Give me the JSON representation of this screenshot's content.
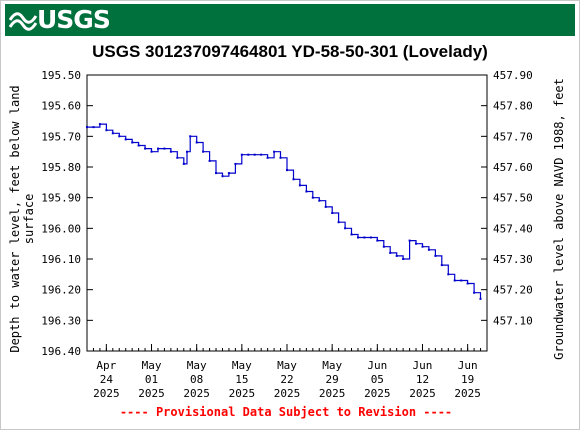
{
  "header": {
    "logo_text": "USGS",
    "banner_color": "#00703c",
    "logo_icon": "usgs-wave-icon"
  },
  "chart_data": {
    "type": "line",
    "title": "USGS 301237097464801 YD-58-50-301 (Lovelady)",
    "ylabel_left": [
      "Depth to water level, feet below land",
      "surface"
    ],
    "ylabel_right": "Groundwater level above NAVD 1988, feet",
    "left_axis": {
      "min": 195.5,
      "max": 196.4,
      "inverted": true,
      "ticks": [
        "195.50",
        "195.60",
        "195.70",
        "195.80",
        "195.90",
        "196.00",
        "196.10",
        "196.20",
        "196.30",
        "196.40"
      ]
    },
    "right_axis": {
      "ticks": [
        "457.90",
        "457.80",
        "457.70",
        "457.60",
        "457.50",
        "457.40",
        "457.30",
        "457.20",
        "457.10"
      ],
      "tick_values": [
        457.9,
        457.8,
        457.7,
        457.6,
        457.5,
        457.4,
        457.3,
        457.2,
        457.1
      ]
    },
    "x_axis": {
      "start": "2025-04-21",
      "end": "2025-06-22",
      "ticks": [
        {
          "date": "2025-04-24",
          "lines": [
            "Apr",
            "24",
            "2025"
          ]
        },
        {
          "date": "2025-05-01",
          "lines": [
            "May",
            "01",
            "2025"
          ]
        },
        {
          "date": "2025-05-08",
          "lines": [
            "May",
            "08",
            "2025"
          ]
        },
        {
          "date": "2025-05-15",
          "lines": [
            "May",
            "15",
            "2025"
          ]
        },
        {
          "date": "2025-05-22",
          "lines": [
            "May",
            "22",
            "2025"
          ]
        },
        {
          "date": "2025-05-29",
          "lines": [
            "May",
            "29",
            "2025"
          ]
        },
        {
          "date": "2025-06-05",
          "lines": [
            "Jun",
            "05",
            "2025"
          ]
        },
        {
          "date": "2025-06-12",
          "lines": [
            "Jun",
            "12",
            "2025"
          ]
        },
        {
          "date": "2025-06-19",
          "lines": [
            "Jun",
            "19",
            "2025"
          ]
        }
      ]
    },
    "series": [
      {
        "color": "#0000cc",
        "points": [
          [
            "2025-04-21",
            195.67
          ],
          [
            "2025-04-22",
            195.67
          ],
          [
            "2025-04-23",
            195.66
          ],
          [
            "2025-04-24",
            195.68
          ],
          [
            "2025-04-25",
            195.69
          ],
          [
            "2025-04-26",
            195.7
          ],
          [
            "2025-04-27",
            195.71
          ],
          [
            "2025-04-28",
            195.72
          ],
          [
            "2025-04-29",
            195.73
          ],
          [
            "2025-04-30",
            195.74
          ],
          [
            "2025-05-01",
            195.75
          ],
          [
            "2025-05-02",
            195.74
          ],
          [
            "2025-05-03",
            195.74
          ],
          [
            "2025-05-04",
            195.75
          ],
          [
            "2025-05-05",
            195.77
          ],
          [
            "2025-05-06",
            195.79
          ],
          [
            "2025-05-06T12",
            195.75
          ],
          [
            "2025-05-07",
            195.7
          ],
          [
            "2025-05-08",
            195.72
          ],
          [
            "2025-05-09",
            195.75
          ],
          [
            "2025-05-10",
            195.78
          ],
          [
            "2025-05-11",
            195.82
          ],
          [
            "2025-05-12",
            195.83
          ],
          [
            "2025-05-13",
            195.82
          ],
          [
            "2025-05-14",
            195.79
          ],
          [
            "2025-05-15",
            195.76
          ],
          [
            "2025-05-16",
            195.76
          ],
          [
            "2025-05-17",
            195.76
          ],
          [
            "2025-05-18",
            195.76
          ],
          [
            "2025-05-19",
            195.77
          ],
          [
            "2025-05-20",
            195.75
          ],
          [
            "2025-05-21",
            195.77
          ],
          [
            "2025-05-22",
            195.81
          ],
          [
            "2025-05-23",
            195.84
          ],
          [
            "2025-05-24",
            195.86
          ],
          [
            "2025-05-25",
            195.88
          ],
          [
            "2025-05-26",
            195.9
          ],
          [
            "2025-05-27",
            195.91
          ],
          [
            "2025-05-28",
            195.93
          ],
          [
            "2025-05-29",
            195.95
          ],
          [
            "2025-05-30",
            195.98
          ],
          [
            "2025-05-31",
            196.0
          ],
          [
            "2025-06-01",
            196.02
          ],
          [
            "2025-06-02",
            196.03
          ],
          [
            "2025-06-03",
            196.03
          ],
          [
            "2025-06-04",
            196.03
          ],
          [
            "2025-06-05",
            196.04
          ],
          [
            "2025-06-06",
            196.06
          ],
          [
            "2025-06-07",
            196.08
          ],
          [
            "2025-06-08",
            196.09
          ],
          [
            "2025-06-09",
            196.1
          ],
          [
            "2025-06-10",
            196.04
          ],
          [
            "2025-06-11",
            196.05
          ],
          [
            "2025-06-12",
            196.06
          ],
          [
            "2025-06-13",
            196.07
          ],
          [
            "2025-06-14",
            196.09
          ],
          [
            "2025-06-15",
            196.12
          ],
          [
            "2025-06-16",
            196.15
          ],
          [
            "2025-06-17",
            196.17
          ],
          [
            "2025-06-18",
            196.17
          ],
          [
            "2025-06-19",
            196.18
          ],
          [
            "2025-06-20",
            196.21
          ],
          [
            "2025-06-21",
            196.23
          ]
        ]
      }
    ],
    "footer_note": "---- Provisional Data Subject to Revision ----",
    "grid": false
  }
}
